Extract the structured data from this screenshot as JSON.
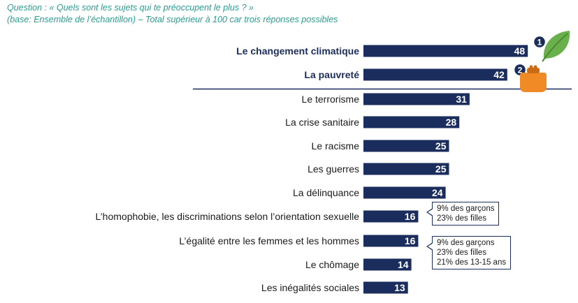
{
  "question": {
    "line1": "Question : « Quels sont les sujets qui te préoccupent le plus ? »",
    "line2": "(base: Ensemble de l’échantillon) – Total supérieur à 100 car trois réponses possibles"
  },
  "chart_data": {
    "type": "bar",
    "orientation": "horizontal",
    "categories": [
      "Le changement climatique",
      "La pauvreté",
      "Le terrorisme",
      "La crise sanitaire",
      "Le racisme",
      "Les guerres",
      "La délinquance",
      "L’homophobie, les discriminations selon l’orientation sexuelle",
      "L’égalité entre les femmes et les hommes",
      "Le chômage",
      "Les inégalités sociales"
    ],
    "values": [
      48,
      42,
      31,
      28,
      25,
      25,
      24,
      16,
      16,
      14,
      13
    ],
    "highlighted_top": 2,
    "rank_badges": [
      "1",
      "2"
    ],
    "colors": {
      "bar": "#1b2d5c",
      "separator": "#1b2d5c",
      "badge": "#1b2d5c",
      "leaf": "#6ab04c",
      "purse": "#f08a24"
    },
    "icons": [
      "leaf-icon",
      "purse-icon"
    ],
    "grid": false
  },
  "callouts": [
    {
      "lines": [
        "9% des garçons",
        "23% des filles"
      ]
    },
    {
      "lines": [
        "9% des garçons",
        "23% des filles",
        "21% des 13-15 ans"
      ]
    }
  ]
}
